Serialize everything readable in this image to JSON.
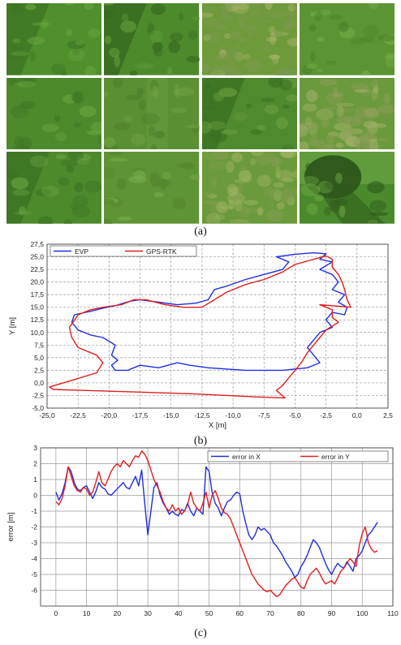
{
  "captions": {
    "a": "(a)",
    "b": "(b)",
    "c": "(c)"
  },
  "photos": {
    "rows": 3,
    "cols": 4,
    "tiles": [
      {
        "base": "#4f8f2c",
        "shade": "#3d7424",
        "highlight": "#6aa640",
        "kind": "diagonal"
      },
      {
        "base": "#4d8a2c",
        "shade": "#35661f",
        "highlight": "#65a03d",
        "kind": "diagonal"
      },
      {
        "base": "#6e9a3b",
        "shade": "#7c9850",
        "highlight": "#a8b36b",
        "kind": "patchy"
      },
      {
        "base": "#5b9433",
        "shade": "#4c8029",
        "highlight": "#77ad49",
        "kind": "plain"
      },
      {
        "base": "#4c8a2b",
        "shade": "#3f7625",
        "highlight": "#6aa53f",
        "kind": "plain"
      },
      {
        "base": "#5a8f33",
        "shade": "#4b7d2b",
        "highlight": "#74a545",
        "kind": "stripe"
      },
      {
        "base": "#4f8a2e",
        "shade": "#3a6f22",
        "highlight": "#6da042",
        "kind": "diagonal"
      },
      {
        "base": "#6b9a3d",
        "shade": "#8a9c58",
        "highlight": "#a3b06a",
        "kind": "patchy"
      },
      {
        "base": "#4d8a2c",
        "shade": "#3a7223",
        "highlight": "#6ca342",
        "kind": "diagonal"
      },
      {
        "base": "#5e9435",
        "shade": "#53842e",
        "highlight": "#7aae4d",
        "kind": "plain"
      },
      {
        "base": "#6a9a3b",
        "shade": "#7f9c4f",
        "highlight": "#9fb463",
        "kind": "patchy"
      },
      {
        "base": "#4a8a2c",
        "shade": "#2f5a1c",
        "highlight": "#6aa441",
        "kind": "tree"
      }
    ]
  },
  "chart_data": [
    {
      "type": "line",
      "xlabel": "X [m]",
      "ylabel": "Y [m]",
      "xlim": [
        -25.0,
        2.5
      ],
      "ylim": [
        -5.0,
        27.5
      ],
      "xticks": [
        "-25,0",
        "-22,5",
        "-20,0",
        "-17,5",
        "-15,0",
        "-12,5",
        "-10,0",
        "-7,5",
        "-5,0",
        "-2,5",
        "0,0",
        "2,5"
      ],
      "yticks": [
        "-5,0",
        "-2,5",
        "0,0",
        "2,5",
        "5,0",
        "7,5",
        "10,0",
        "12,5",
        "15,0",
        "17,5",
        "20,0",
        "22,5",
        "25,0",
        "27,5"
      ],
      "grid": true,
      "legend": "top-left",
      "series": [
        {
          "name": "EVP",
          "color": "#1f2ee0",
          "points": [
            [
              -22.8,
              13.5
            ],
            [
              -21.5,
              14.2
            ],
            [
              -20.5,
              14.8
            ],
            [
              -19.5,
              15.3
            ],
            [
              -18.3,
              16.2
            ],
            [
              -17.5,
              16.5
            ],
            [
              -16.0,
              16.0
            ],
            [
              -14.5,
              15.5
            ],
            [
              -13.0,
              15.8
            ],
            [
              -12.0,
              16.5
            ],
            [
              -11.5,
              18.5
            ],
            [
              -10.5,
              19.2
            ],
            [
              -9.0,
              20.5
            ],
            [
              -7.5,
              21.5
            ],
            [
              -6.0,
              22.5
            ],
            [
              -5.5,
              24.0
            ],
            [
              -6.5,
              25.0
            ],
            [
              -5.0,
              25.5
            ],
            [
              -3.5,
              25.8
            ],
            [
              -2.5,
              25.6
            ],
            [
              -3.0,
              24.5
            ],
            [
              -2.0,
              24.0
            ],
            [
              -3.0,
              22.5
            ],
            [
              -2.0,
              21.5
            ],
            [
              -1.5,
              20.0
            ],
            [
              -2.0,
              18.5
            ],
            [
              -1.0,
              17.5
            ],
            [
              -1.5,
              16.0
            ],
            [
              -0.8,
              15.0
            ],
            [
              -1.0,
              13.5
            ],
            [
              -2.0,
              14.0
            ],
            [
              -2.5,
              12.5
            ],
            [
              -2.0,
              11.0
            ],
            [
              -3.0,
              10.0
            ],
            [
              -3.5,
              8.5
            ],
            [
              -4.0,
              7.0
            ],
            [
              -3.5,
              5.5
            ],
            [
              -3.0,
              4.0
            ],
            [
              -4.0,
              3.0
            ],
            [
              -6.0,
              2.5
            ],
            [
              -9.0,
              2.5
            ],
            [
              -12.0,
              3.0
            ],
            [
              -13.5,
              3.5
            ],
            [
              -14.5,
              4.0
            ],
            [
              -16.0,
              3.0
            ],
            [
              -17.5,
              3.5
            ],
            [
              -18.5,
              2.5
            ],
            [
              -19.5,
              2.5
            ],
            [
              -19.8,
              3.5
            ],
            [
              -19.3,
              4.5
            ],
            [
              -19.8,
              5.5
            ],
            [
              -19.5,
              7.5
            ],
            [
              -20.5,
              9.0
            ],
            [
              -21.5,
              9.5
            ],
            [
              -22.5,
              10.5
            ],
            [
              -23.0,
              12.0
            ],
            [
              -22.8,
              13.5
            ]
          ]
        },
        {
          "name": "GPS-RTK",
          "color": "#e01f1f",
          "points": [
            [
              -22.5,
              13.5
            ],
            [
              -21.5,
              14.5
            ],
            [
              -20.5,
              15.0
            ],
            [
              -19.0,
              15.5
            ],
            [
              -18.0,
              16.5
            ],
            [
              -17.0,
              16.5
            ],
            [
              -15.5,
              15.5
            ],
            [
              -14.0,
              15.0
            ],
            [
              -12.5,
              15.0
            ],
            [
              -11.5,
              16.5
            ],
            [
              -10.5,
              18.0
            ],
            [
              -9.0,
              19.5
            ],
            [
              -7.5,
              20.5
            ],
            [
              -6.0,
              22.0
            ],
            [
              -5.0,
              23.5
            ],
            [
              -3.5,
              24.5
            ],
            [
              -2.5,
              25.2
            ],
            [
              -2.0,
              24.5
            ],
            [
              -2.0,
              23.0
            ],
            [
              -1.5,
              21.5
            ],
            [
              -1.2,
              20.0
            ],
            [
              -1.0,
              18.5
            ],
            [
              -0.8,
              16.5
            ],
            [
              -0.5,
              15.0
            ],
            [
              -3.0,
              15.5
            ],
            [
              -2.0,
              14.5
            ],
            [
              -2.0,
              13.0
            ],
            [
              -1.5,
              12.0
            ],
            [
              -2.5,
              10.5
            ],
            [
              -3.0,
              9.0
            ],
            [
              -4.0,
              6.0
            ],
            [
              -4.5,
              4.0
            ],
            [
              -5.0,
              2.5
            ],
            [
              -5.5,
              1.0
            ],
            [
              -6.0,
              -0.5
            ],
            [
              -6.5,
              -1.5
            ],
            [
              -5.8,
              -3.0
            ],
            [
              -8.0,
              -2.8
            ],
            [
              -13.0,
              -2.2
            ],
            [
              -18.0,
              -1.8
            ],
            [
              -22.0,
              -1.5
            ],
            [
              -24.5,
              -1.3
            ],
            [
              -24.8,
              -0.8
            ],
            [
              -23.0,
              0.5
            ],
            [
              -21.0,
              2.0
            ],
            [
              -20.5,
              4.0
            ],
            [
              -21.0,
              5.5
            ],
            [
              -22.5,
              7.0
            ],
            [
              -23.0,
              9.0
            ],
            [
              -23.2,
              11.0
            ],
            [
              -22.5,
              13.5
            ]
          ]
        }
      ]
    },
    {
      "type": "line",
      "xlabel": "",
      "ylabel": "error [m]",
      "xlim": [
        -5,
        110
      ],
      "ylim": [
        -7,
        3
      ],
      "xticks": [
        "0",
        "10",
        "20",
        "30",
        "40",
        "50",
        "60",
        "70",
        "80",
        "90",
        "100",
        "110"
      ],
      "yticks": [
        "3",
        "2",
        "1",
        "0",
        "-1",
        "-2",
        "-3",
        "-4",
        "-5",
        "-6"
      ],
      "grid": true,
      "legend": "top-right",
      "series": [
        {
          "name": "error in X",
          "color": "#1f2ee0",
          "x": [
            0,
            1,
            2,
            3,
            4,
            5,
            6,
            7,
            8,
            9,
            10,
            11,
            12,
            13,
            14,
            15,
            16,
            17,
            18,
            19,
            20,
            21,
            22,
            23,
            24,
            25,
            26,
            27,
            28,
            29,
            30,
            31,
            32,
            33,
            34,
            35,
            36,
            37,
            38,
            39,
            40,
            41,
            42,
            43,
            44,
            45,
            46,
            47,
            48,
            49,
            50,
            51,
            52,
            53,
            54,
            55,
            56,
            57,
            58,
            59,
            60,
            61,
            62,
            63,
            64,
            65,
            66,
            67,
            68,
            69,
            70,
            71,
            72,
            73,
            74,
            75,
            76,
            77,
            78,
            79,
            80,
            81,
            82,
            83,
            84,
            85,
            86,
            87,
            88,
            89,
            90,
            91,
            92,
            93,
            94,
            95,
            96,
            97,
            98,
            99,
            100,
            101,
            102,
            103,
            104,
            105
          ],
          "y": [
            0.2,
            -0.3,
            0.1,
            0.8,
            1.8,
            1.5,
            0.8,
            0.4,
            0.3,
            0.5,
            0.6,
            0.2,
            -0.2,
            0.2,
            0.8,
            0.5,
            0.4,
            0.1,
            0.0,
            0.2,
            0.4,
            0.6,
            0.8,
            0.5,
            0.4,
            0.8,
            1.2,
            0.6,
            1.6,
            -0.5,
            -2.5,
            -1.0,
            0.5,
            0.8,
            0.0,
            -0.5,
            -0.8,
            -1.2,
            -1.0,
            -1.2,
            -1.3,
            -0.9,
            -1.0,
            -0.5,
            -1.0,
            -1.3,
            -0.8,
            -1.0,
            -1.2,
            1.8,
            1.5,
            0.2,
            -0.5,
            -0.8,
            -1.3,
            -0.8,
            -0.4,
            -0.3,
            0.0,
            0.2,
            0.1,
            -1.0,
            -1.8,
            -2.5,
            -2.8,
            -2.5,
            -2.0,
            -2.2,
            -2.1,
            -2.3,
            -2.5,
            -3.0,
            -3.2,
            -3.5,
            -3.8,
            -4.2,
            -4.5,
            -4.8,
            -5.2,
            -5.0,
            -4.5,
            -4.2,
            -3.8,
            -3.3,
            -2.8,
            -3.0,
            -3.3,
            -3.8,
            -4.3,
            -4.7,
            -5.0,
            -4.6,
            -4.3,
            -4.5,
            -4.6,
            -4.2,
            -4.5,
            -4.8,
            -4.0,
            -3.8,
            -3.5,
            -3.0,
            -2.5,
            -2.3,
            -2.0,
            -1.7
          ]
        },
        {
          "name": "error in Y",
          "color": "#e01f1f",
          "x": [
            0,
            1,
            2,
            3,
            4,
            5,
            6,
            7,
            8,
            9,
            10,
            11,
            12,
            13,
            14,
            15,
            16,
            17,
            18,
            19,
            20,
            21,
            22,
            23,
            24,
            25,
            26,
            27,
            28,
            29,
            30,
            31,
            32,
            33,
            34,
            35,
            36,
            37,
            38,
            39,
            40,
            41,
            42,
            43,
            44,
            45,
            46,
            47,
            48,
            49,
            50,
            51,
            52,
            53,
            54,
            55,
            56,
            57,
            58,
            59,
            60,
            61,
            62,
            63,
            64,
            65,
            66,
            67,
            68,
            69,
            70,
            71,
            72,
            73,
            74,
            75,
            76,
            77,
            78,
            79,
            80,
            81,
            82,
            83,
            84,
            85,
            86,
            87,
            88,
            89,
            90,
            91,
            92,
            93,
            94,
            95,
            96,
            97,
            98,
            99,
            100,
            101,
            102,
            103,
            104,
            105
          ],
          "y": [
            -0.4,
            -0.6,
            -0.2,
            0.6,
            1.8,
            1.2,
            0.6,
            0.3,
            0.2,
            0.5,
            0.4,
            0.0,
            0.2,
            0.8,
            1.5,
            0.8,
            0.6,
            1.0,
            1.5,
            1.8,
            2.0,
            1.8,
            2.2,
            2.0,
            1.8,
            2.2,
            2.5,
            2.4,
            2.8,
            2.6,
            2.2,
            1.6,
            1.0,
            0.6,
            0.2,
            -0.4,
            -0.8,
            -1.0,
            -0.6,
            -1.0,
            -0.8,
            -1.2,
            -1.0,
            -0.6,
            0.2,
            -0.5,
            -0.8,
            -1.0,
            -0.5,
            0.2,
            -0.8,
            0.0,
            0.3,
            -0.2,
            -0.8,
            -1.1,
            -1.2,
            -1.5,
            -2.0,
            -2.5,
            -3.0,
            -3.5,
            -4.0,
            -4.5,
            -5.0,
            -5.3,
            -5.6,
            -5.8,
            -6.0,
            -6.1,
            -6.0,
            -6.2,
            -6.4,
            -6.3,
            -6.0,
            -5.7,
            -5.5,
            -5.3,
            -5.2,
            -5.5,
            -5.8,
            -5.9,
            -5.4,
            -5.0,
            -4.8,
            -4.6,
            -4.9,
            -5.3,
            -5.6,
            -5.5,
            -5.4,
            -5.6,
            -5.2,
            -4.8,
            -4.6,
            -4.3,
            -4.0,
            -4.2,
            -4.5,
            -3.2,
            -2.4,
            -2.0,
            -3.0,
            -3.4,
            -3.6,
            -3.5
          ]
        }
      ]
    }
  ]
}
